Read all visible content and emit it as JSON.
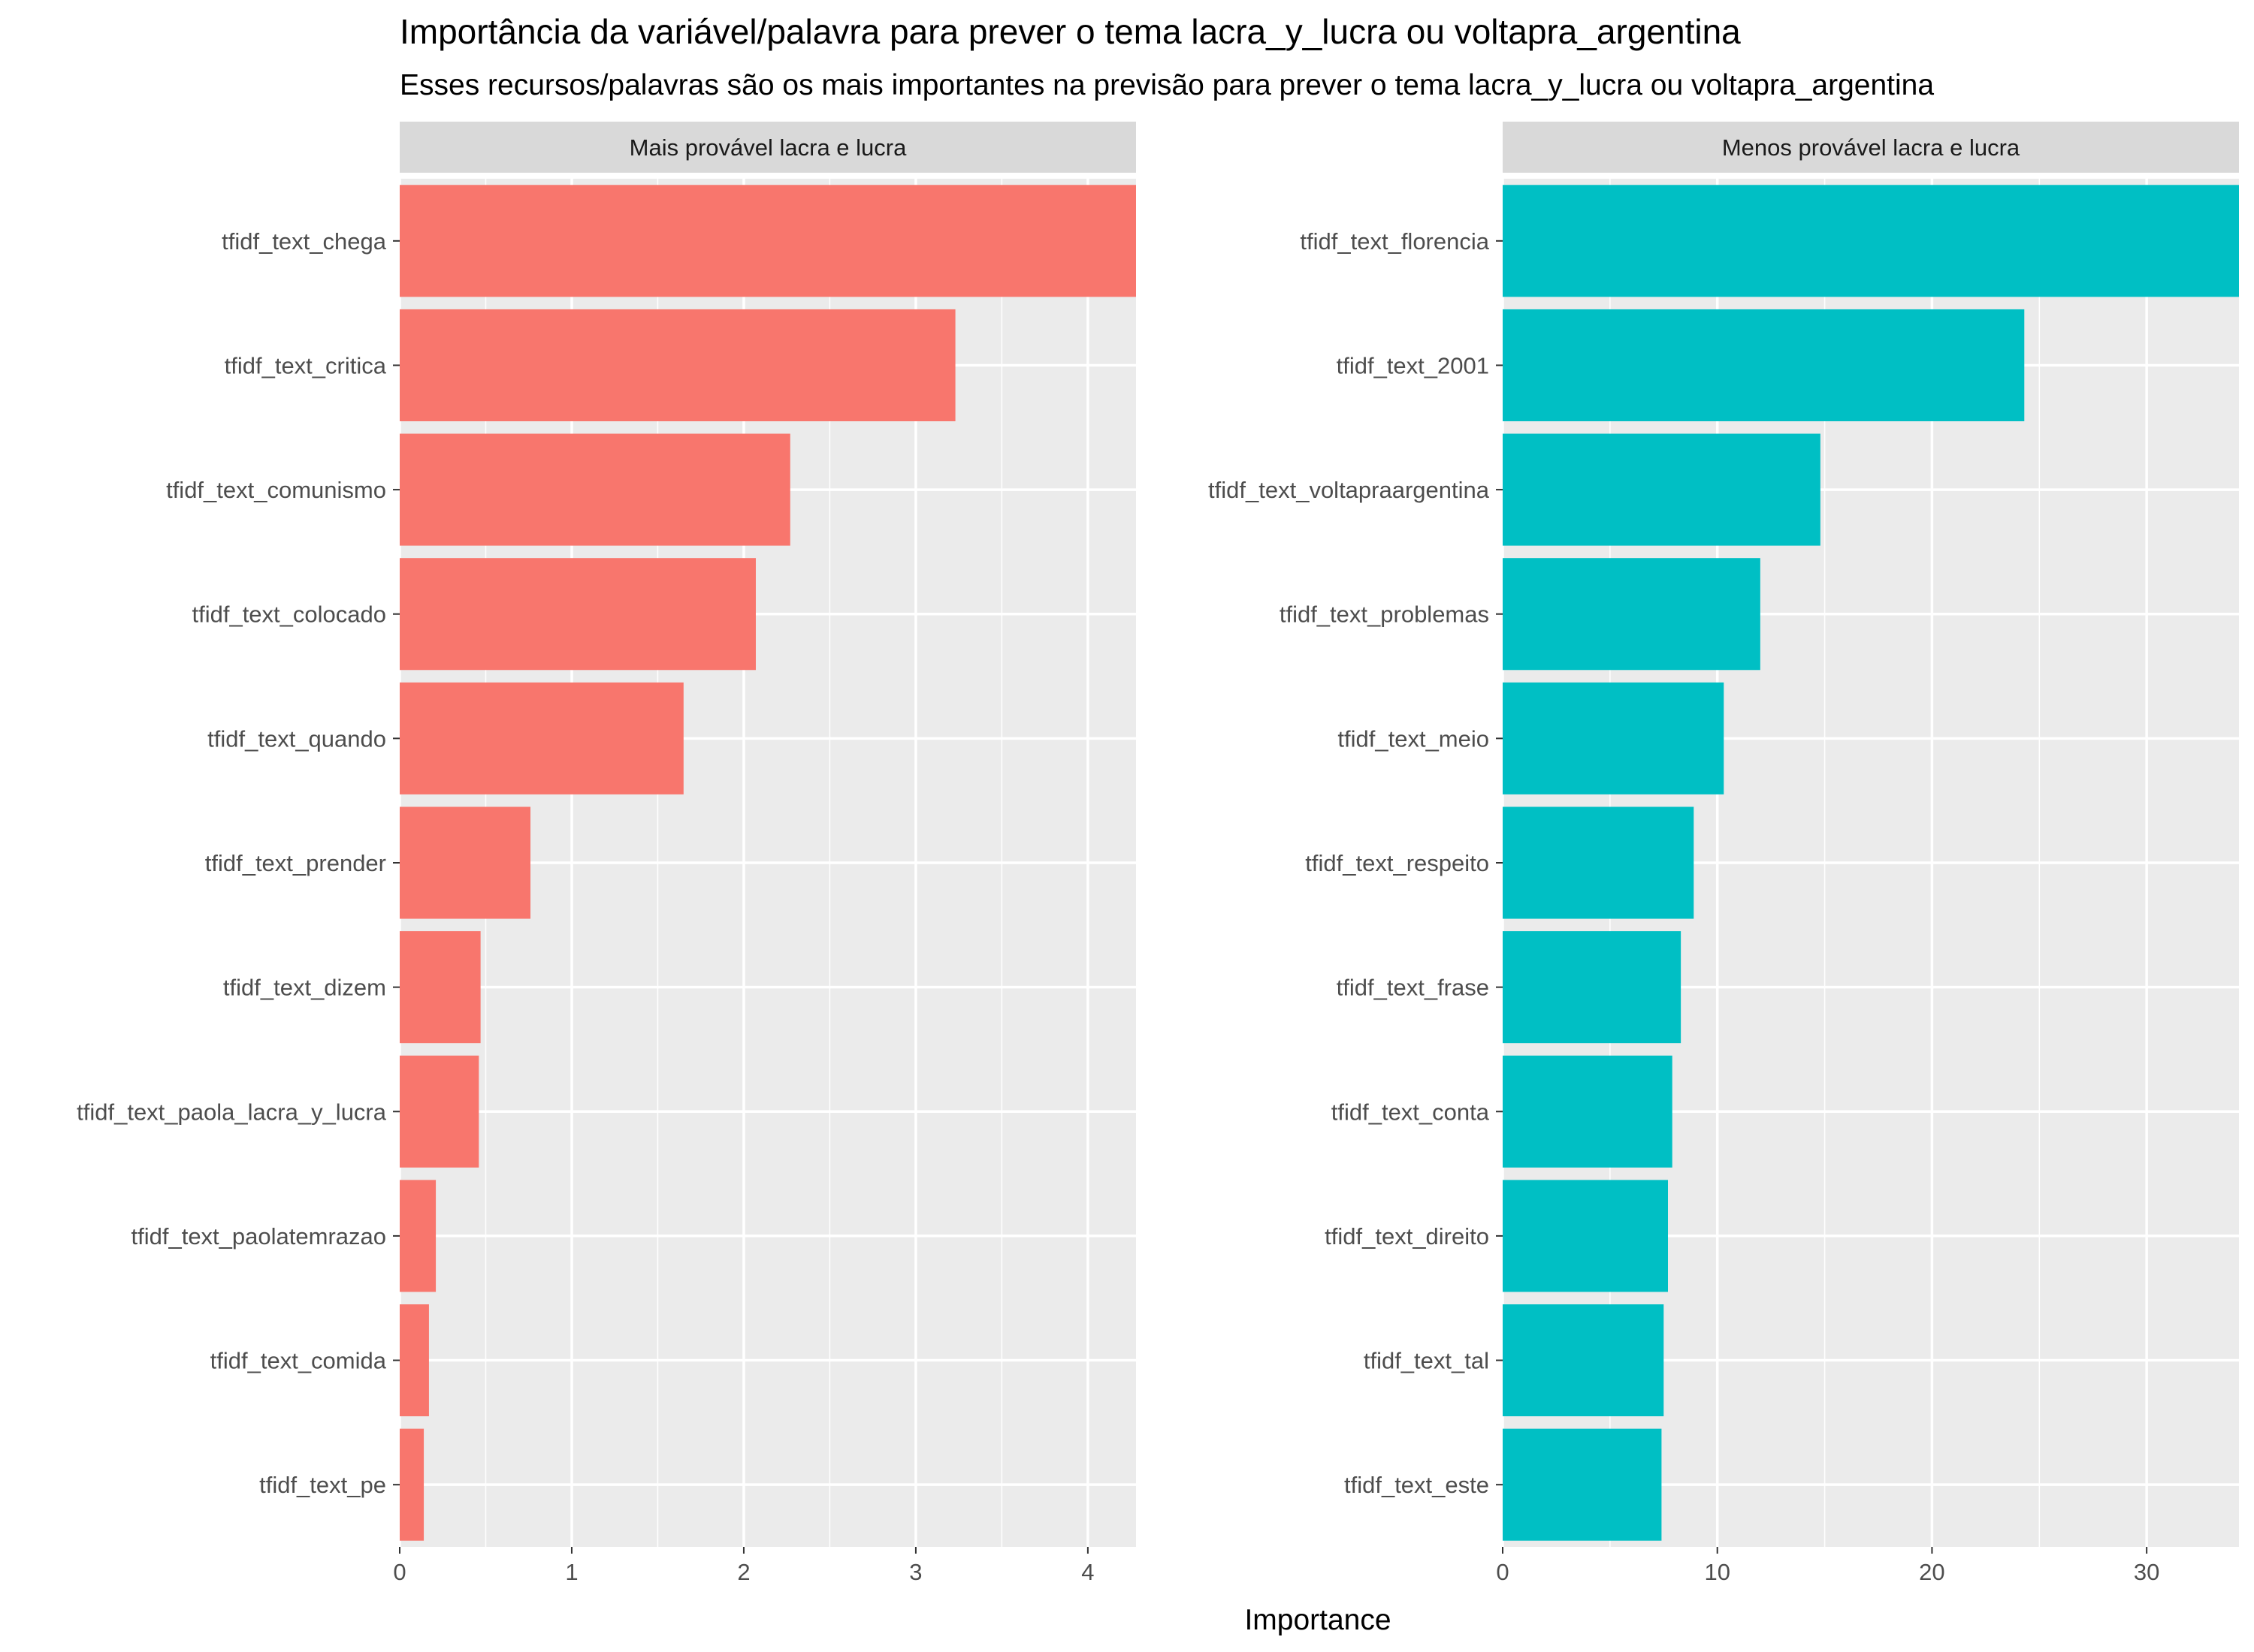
{
  "chart_data": {
    "type": "bar",
    "orientation": "horizontal",
    "title": "Importância da variável/palavra para prever o tema lacra_y_lucra ou voltapra_argentina",
    "subtitle": "Esses recursos/palavras são os mais importantes na previsão  para prever o tema lacra_y_lucra ou voltapra_argentina",
    "xlabel": "Importance",
    "ylabel": "",
    "grid": true,
    "legend": "none",
    "panels": [
      {
        "strip": "Mais provável lacra e lucra",
        "color": "#F8766D",
        "xlim": [
          0,
          4.28
        ],
        "xticks": [
          0,
          1,
          2,
          3,
          4
        ],
        "xtick_labels": [
          "0",
          "1",
          "2",
          "3",
          "4"
        ],
        "categories": [
          "tfidf_text_chega",
          "tfidf_text_critica",
          "tfidf_text_comunismo",
          "tfidf_text_colocado",
          "tfidf_text_quando",
          "tfidf_text_prender",
          "tfidf_text_dizem",
          "tfidf_text_paola_lacra_y_lucra",
          "tfidf_text_paolatemrazao",
          "tfidf_text_comida",
          "tfidf_text_pe"
        ],
        "values": [
          4.28,
          3.23,
          2.27,
          2.07,
          1.65,
          0.76,
          0.47,
          0.46,
          0.21,
          0.17,
          0.14
        ]
      },
      {
        "strip": "Menos provável lacra e lucra",
        "color": "#00BFC4",
        "xlim": [
          0,
          34.3
        ],
        "xticks": [
          0,
          10,
          20,
          30
        ],
        "xtick_labels": [
          "0",
          "10",
          "20",
          "30"
        ],
        "categories": [
          "tfidf_text_florencia",
          "tfidf_text_2001",
          "tfidf_text_voltapraargentina",
          "tfidf_text_problemas",
          "tfidf_text_meio",
          "tfidf_text_respeito",
          "tfidf_text_frase",
          "tfidf_text_conta",
          "tfidf_text_direito",
          "tfidf_text_tal",
          "tfidf_text_este"
        ],
        "values": [
          34.3,
          24.3,
          14.8,
          12.0,
          10.3,
          8.9,
          8.3,
          7.9,
          7.7,
          7.5,
          7.4
        ]
      }
    ]
  }
}
